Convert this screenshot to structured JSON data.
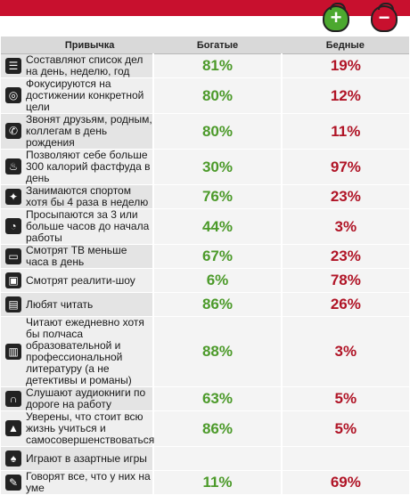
{
  "header": {
    "habit": "Привычка",
    "rich": "Богатые",
    "poor": "Бедные"
  },
  "badges": {
    "rich_symbol": "+",
    "poor_symbol": "−",
    "rich_color": "#4ca82f",
    "poor_color": "#c8102e"
  },
  "rows": [
    {
      "icon": "list-icon",
      "glyph": "☰",
      "text": "Составляют список дел на день, неделю, год",
      "rich": "81%",
      "poor": "19%"
    },
    {
      "icon": "target-icon",
      "glyph": "◎",
      "text": "Фокусируются на достижении конкретной цели",
      "rich": "80%",
      "poor": "12%"
    },
    {
      "icon": "phone-icon",
      "glyph": "✆",
      "text": "Звонят друзьям, родным, коллегам в день рождения",
      "rich": "80%",
      "poor": "11%"
    },
    {
      "icon": "fastfood-icon",
      "glyph": "♨",
      "text": "Позволяют себе больше 300 калорий фастфуда в день",
      "rich": "30%",
      "poor": "97%"
    },
    {
      "icon": "running-icon",
      "glyph": "✦",
      "text": "Занимаются спортом хотя бы 4 раза в неделю",
      "rich": "76%",
      "poor": "23%"
    },
    {
      "icon": "alarm-clock-icon",
      "glyph": "◔",
      "text": "Просыпаются за 3 или больше часов до начала работы",
      "rich": "44%",
      "poor": "3%"
    },
    {
      "icon": "tv-icon",
      "glyph": "▭",
      "text": "Смотрят ТВ меньше часа в день",
      "rich": "67%",
      "poor": "23%"
    },
    {
      "icon": "reality-tv-icon",
      "glyph": "▣",
      "text": "Смотрят реалити-шоу",
      "rich": "6%",
      "poor": "78%"
    },
    {
      "icon": "book-icon",
      "glyph": "▤",
      "text": "Любят читать",
      "rich": "86%",
      "poor": "26%"
    },
    {
      "icon": "open-book-icon",
      "glyph": "▥",
      "text": "Читают ежедневно хотя бы полчаса образовательной и профессиональной литературу (а не детективы и романы)",
      "rich": "88%",
      "poor": "3%"
    },
    {
      "icon": "headphones-icon",
      "glyph": "∩",
      "text": "Слушают аудиокниги по дороге на работу",
      "rich": "63%",
      "poor": "5%"
    },
    {
      "icon": "graduation-cap-icon",
      "glyph": "▲",
      "text": "Уверены, что стоит всю жизнь учиться и самосовершенствоваться",
      "rich": "86%",
      "poor": "5%"
    },
    {
      "icon": "spade-icon",
      "glyph": "♠",
      "text": "Играют в азартные игры",
      "rich": "",
      "poor": ""
    },
    {
      "icon": "speech-icon",
      "glyph": "✎",
      "text": "Говорят все, что у них на уме",
      "rich": "11%",
      "poor": "69%"
    }
  ]
}
